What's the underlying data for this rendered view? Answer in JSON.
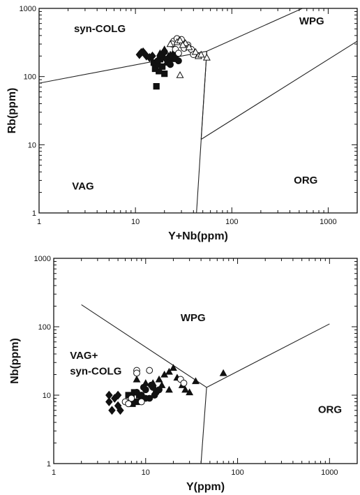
{
  "chart_data": [
    {
      "type": "scatter",
      "title": "",
      "xlabel": "Y+Nb(ppm)",
      "ylabel": "Rb(ppm)",
      "x_scale": "log",
      "y_scale": "log",
      "xlim": [
        1,
        2000
      ],
      "ylim": [
        1,
        1000
      ],
      "x_ticks": [
        1,
        10,
        100,
        1000
      ],
      "y_ticks": [
        1,
        10,
        100,
        1000
      ],
      "grid": false,
      "field_labels": [
        {
          "text": "syn-COLG",
          "x": 2.3,
          "y": 450
        },
        {
          "text": "WPG",
          "x": 500,
          "y": 580
        },
        {
          "text": "VAG",
          "x": 2.2,
          "y": 2.2
        },
        {
          "text": "ORG",
          "x": 440,
          "y": 2.7
        }
      ],
      "boundaries": [
        [
          [
            1,
            80
          ],
          [
            55,
            235
          ]
        ],
        [
          [
            55,
            235
          ],
          [
            540,
            1000
          ]
        ],
        [
          [
            55,
            235
          ],
          [
            43,
            1
          ]
        ],
        [
          [
            55,
            235
          ],
          [
            48,
            12
          ]
        ],
        [
          [
            48,
            12
          ],
          [
            2000,
            330
          ]
        ]
      ],
      "series": [
        {
          "marker": "filled-diamond",
          "points": [
            [
              11,
              210
            ],
            [
              12,
              230
            ],
            [
              13,
              200
            ],
            [
              14,
              190
            ],
            [
              12.5,
              215
            ],
            [
              15,
              200
            ],
            [
              11.5,
              225
            ]
          ]
        },
        {
          "marker": "filled-square",
          "points": [
            [
              16,
              130
            ],
            [
              17,
              150
            ],
            [
              16.5,
              72
            ],
            [
              17.5,
              120
            ],
            [
              18,
              180
            ],
            [
              15.5,
              160
            ],
            [
              19,
              140
            ],
            [
              20,
              110
            ],
            [
              18.5,
              200
            ]
          ]
        },
        {
          "marker": "filled-triangle",
          "points": [
            [
              18,
              220
            ],
            [
              20,
              250
            ],
            [
              22,
              200
            ],
            [
              24,
              180
            ],
            [
              21,
              160
            ],
            [
              25,
              230
            ],
            [
              19,
              190
            ],
            [
              23,
              210
            ]
          ]
        },
        {
          "marker": "filled-circle",
          "points": [
            [
              17,
              170
            ],
            [
              19,
              210
            ],
            [
              21,
              180
            ],
            [
              22,
              160
            ],
            [
              24,
              200
            ],
            [
              26,
              190
            ],
            [
              28,
              170
            ],
            [
              20,
              230
            ],
            [
              23,
              150
            ]
          ]
        },
        {
          "marker": "open-circle",
          "points": [
            [
              25,
              330
            ],
            [
              27,
              360
            ],
            [
              30,
              350
            ],
            [
              26,
              250
            ],
            [
              28,
              220
            ],
            [
              35,
              290
            ],
            [
              38,
              250
            ],
            [
              40,
              210
            ],
            [
              24,
              300
            ],
            [
              32,
              260
            ]
          ]
        },
        {
          "marker": "open-triangle",
          "points": [
            [
              23,
              300
            ],
            [
              27,
              320
            ],
            [
              29,
              340
            ],
            [
              33,
              310
            ],
            [
              36,
              270
            ],
            [
              42,
              230
            ],
            [
              45,
              200
            ],
            [
              48,
              210
            ],
            [
              55,
              190
            ],
            [
              29,
              105
            ],
            [
              31,
              290
            ]
          ]
        }
      ]
    },
    {
      "type": "scatter",
      "title": "",
      "xlabel": "Y(ppm)",
      "ylabel": "Nb(ppm)",
      "x_scale": "log",
      "y_scale": "log",
      "xlim": [
        1,
        2000
      ],
      "ylim": [
        1,
        1000
      ],
      "x_ticks": [
        1,
        10,
        100,
        1000
      ],
      "y_ticks": [
        1,
        10,
        100,
        1000
      ],
      "grid": false,
      "field_labels": [
        {
          "text": "WPG",
          "x": 24,
          "y": 120
        },
        {
          "text": "VAG+",
          "x": 1.5,
          "y": 34
        },
        {
          "text": "syn-COLG",
          "x": 1.5,
          "y": 20
        },
        {
          "text": "ORG",
          "x": 750,
          "y": 5.5
        }
      ],
      "boundaries": [
        [
          [
            2,
            210
          ],
          [
            46,
            13
          ]
        ],
        [
          [
            46,
            13
          ],
          [
            1000,
            110
          ]
        ],
        [
          [
            46,
            13
          ],
          [
            40,
            1
          ]
        ]
      ],
      "series": [
        {
          "marker": "filled-diamond",
          "points": [
            [
              4,
              10
            ],
            [
              4,
              8
            ],
            [
              4.3,
              6
            ],
            [
              5,
              7
            ],
            [
              5.3,
              6
            ],
            [
              4.6,
              9
            ],
            [
              5,
              10
            ]
          ]
        },
        {
          "marker": "filled-square",
          "points": [
            [
              7,
              9
            ],
            [
              7.5,
              11
            ],
            [
              8,
              8
            ],
            [
              8.5,
              10
            ],
            [
              7.2,
              7.5
            ],
            [
              9,
              9
            ],
            [
              6.5,
              10
            ]
          ]
        },
        {
          "marker": "filled-circle",
          "points": [
            [
              8,
              11
            ],
            [
              9,
              10
            ],
            [
              10,
              12
            ],
            [
              11,
              9
            ],
            [
              12,
              13
            ],
            [
              13,
              11
            ],
            [
              10,
              9
            ],
            [
              11.5,
              14
            ],
            [
              14,
              12
            ],
            [
              9.5,
              13
            ],
            [
              12.5,
              10
            ]
          ]
        },
        {
          "marker": "filled-triangle",
          "points": [
            [
              12,
              15
            ],
            [
              14,
              17
            ],
            [
              16,
              20
            ],
            [
              18,
              22
            ],
            [
              20,
              25
            ],
            [
              22,
              18
            ],
            [
              25,
              14
            ],
            [
              27,
              12
            ],
            [
              30,
              11
            ],
            [
              35,
              16
            ],
            [
              70,
              21
            ],
            [
              18,
              12
            ],
            [
              15,
              14
            ],
            [
              8,
              17
            ],
            [
              10,
              15
            ]
          ]
        },
        {
          "marker": "open-circle",
          "points": [
            [
              6,
              8
            ],
            [
              7,
              9
            ],
            [
              8,
              23
            ],
            [
              8,
              21
            ],
            [
              9,
              8
            ],
            [
              11,
              23
            ],
            [
              24,
              17
            ],
            [
              26,
              15
            ],
            [
              6.5,
              7.5
            ]
          ]
        }
      ]
    }
  ]
}
